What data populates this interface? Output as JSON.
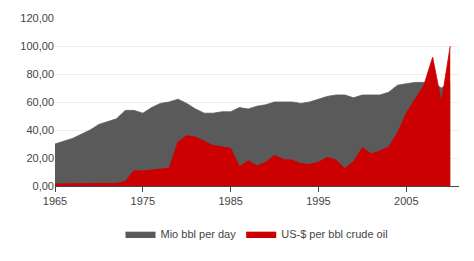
{
  "chart_data": {
    "type": "area",
    "x": [
      1965,
      1966,
      1967,
      1968,
      1969,
      1970,
      1971,
      1972,
      1973,
      1974,
      1975,
      1976,
      1977,
      1978,
      1979,
      1980,
      1981,
      1982,
      1983,
      1984,
      1985,
      1986,
      1987,
      1988,
      1989,
      1990,
      1991,
      1992,
      1993,
      1994,
      1995,
      1996,
      1997,
      1998,
      1999,
      2000,
      2001,
      2002,
      2003,
      2004,
      2005,
      2006,
      2007,
      2008,
      2009,
      2010
    ],
    "series": [
      {
        "name": "Mio bbl per day",
        "color": "#5a5a5a",
        "values": [
          30,
          32,
          34,
          37,
          40,
          44,
          46,
          48,
          54,
          54,
          52,
          56,
          59,
          60,
          62,
          59,
          55,
          52,
          52,
          53,
          53,
          56,
          55,
          57,
          58,
          60,
          60,
          60,
          59,
          60,
          62,
          64,
          65,
          65,
          63,
          65,
          65,
          65,
          67,
          72,
          73,
          74,
          74,
          74,
          70,
          74
        ]
      },
      {
        "name": "US-$ per bbl crude oil",
        "color": "#CC0000",
        "values": [
          1.5,
          1.5,
          1.5,
          1.5,
          1.5,
          1.5,
          1.7,
          1.9,
          3.3,
          11.0,
          10.7,
          11.5,
          12.5,
          12.8,
          31.5,
          36.0,
          35.0,
          32.0,
          29.0,
          28.0,
          27.0,
          14.0,
          18.0,
          14.5,
          17.0,
          22.0,
          19.0,
          18.5,
          16.0,
          15.5,
          17.0,
          20.5,
          18.5,
          12.5,
          17.5,
          27.5,
          23.0,
          25.0,
          28.0,
          38.0,
          52.0,
          62.0,
          72.0,
          92.0,
          60.0,
          100.0
        ]
      }
    ],
    "xlim": [
      1965,
      2011
    ],
    "xticks": [
      1965,
      1975,
      1985,
      1995,
      2005
    ],
    "ylim": [
      0,
      120
    ],
    "yticks": [
      {
        "value": 0,
        "label": "0,00"
      },
      {
        "value": 20,
        "label": "20,00"
      },
      {
        "value": 40,
        "label": "40,00"
      },
      {
        "value": 60,
        "label": "60,00"
      },
      {
        "value": 80,
        "label": "80,00"
      },
      {
        "value": 100,
        "label": "100,00"
      },
      {
        "value": 120,
        "label": "120,00"
      }
    ],
    "grid": true,
    "legend": "bottom"
  }
}
